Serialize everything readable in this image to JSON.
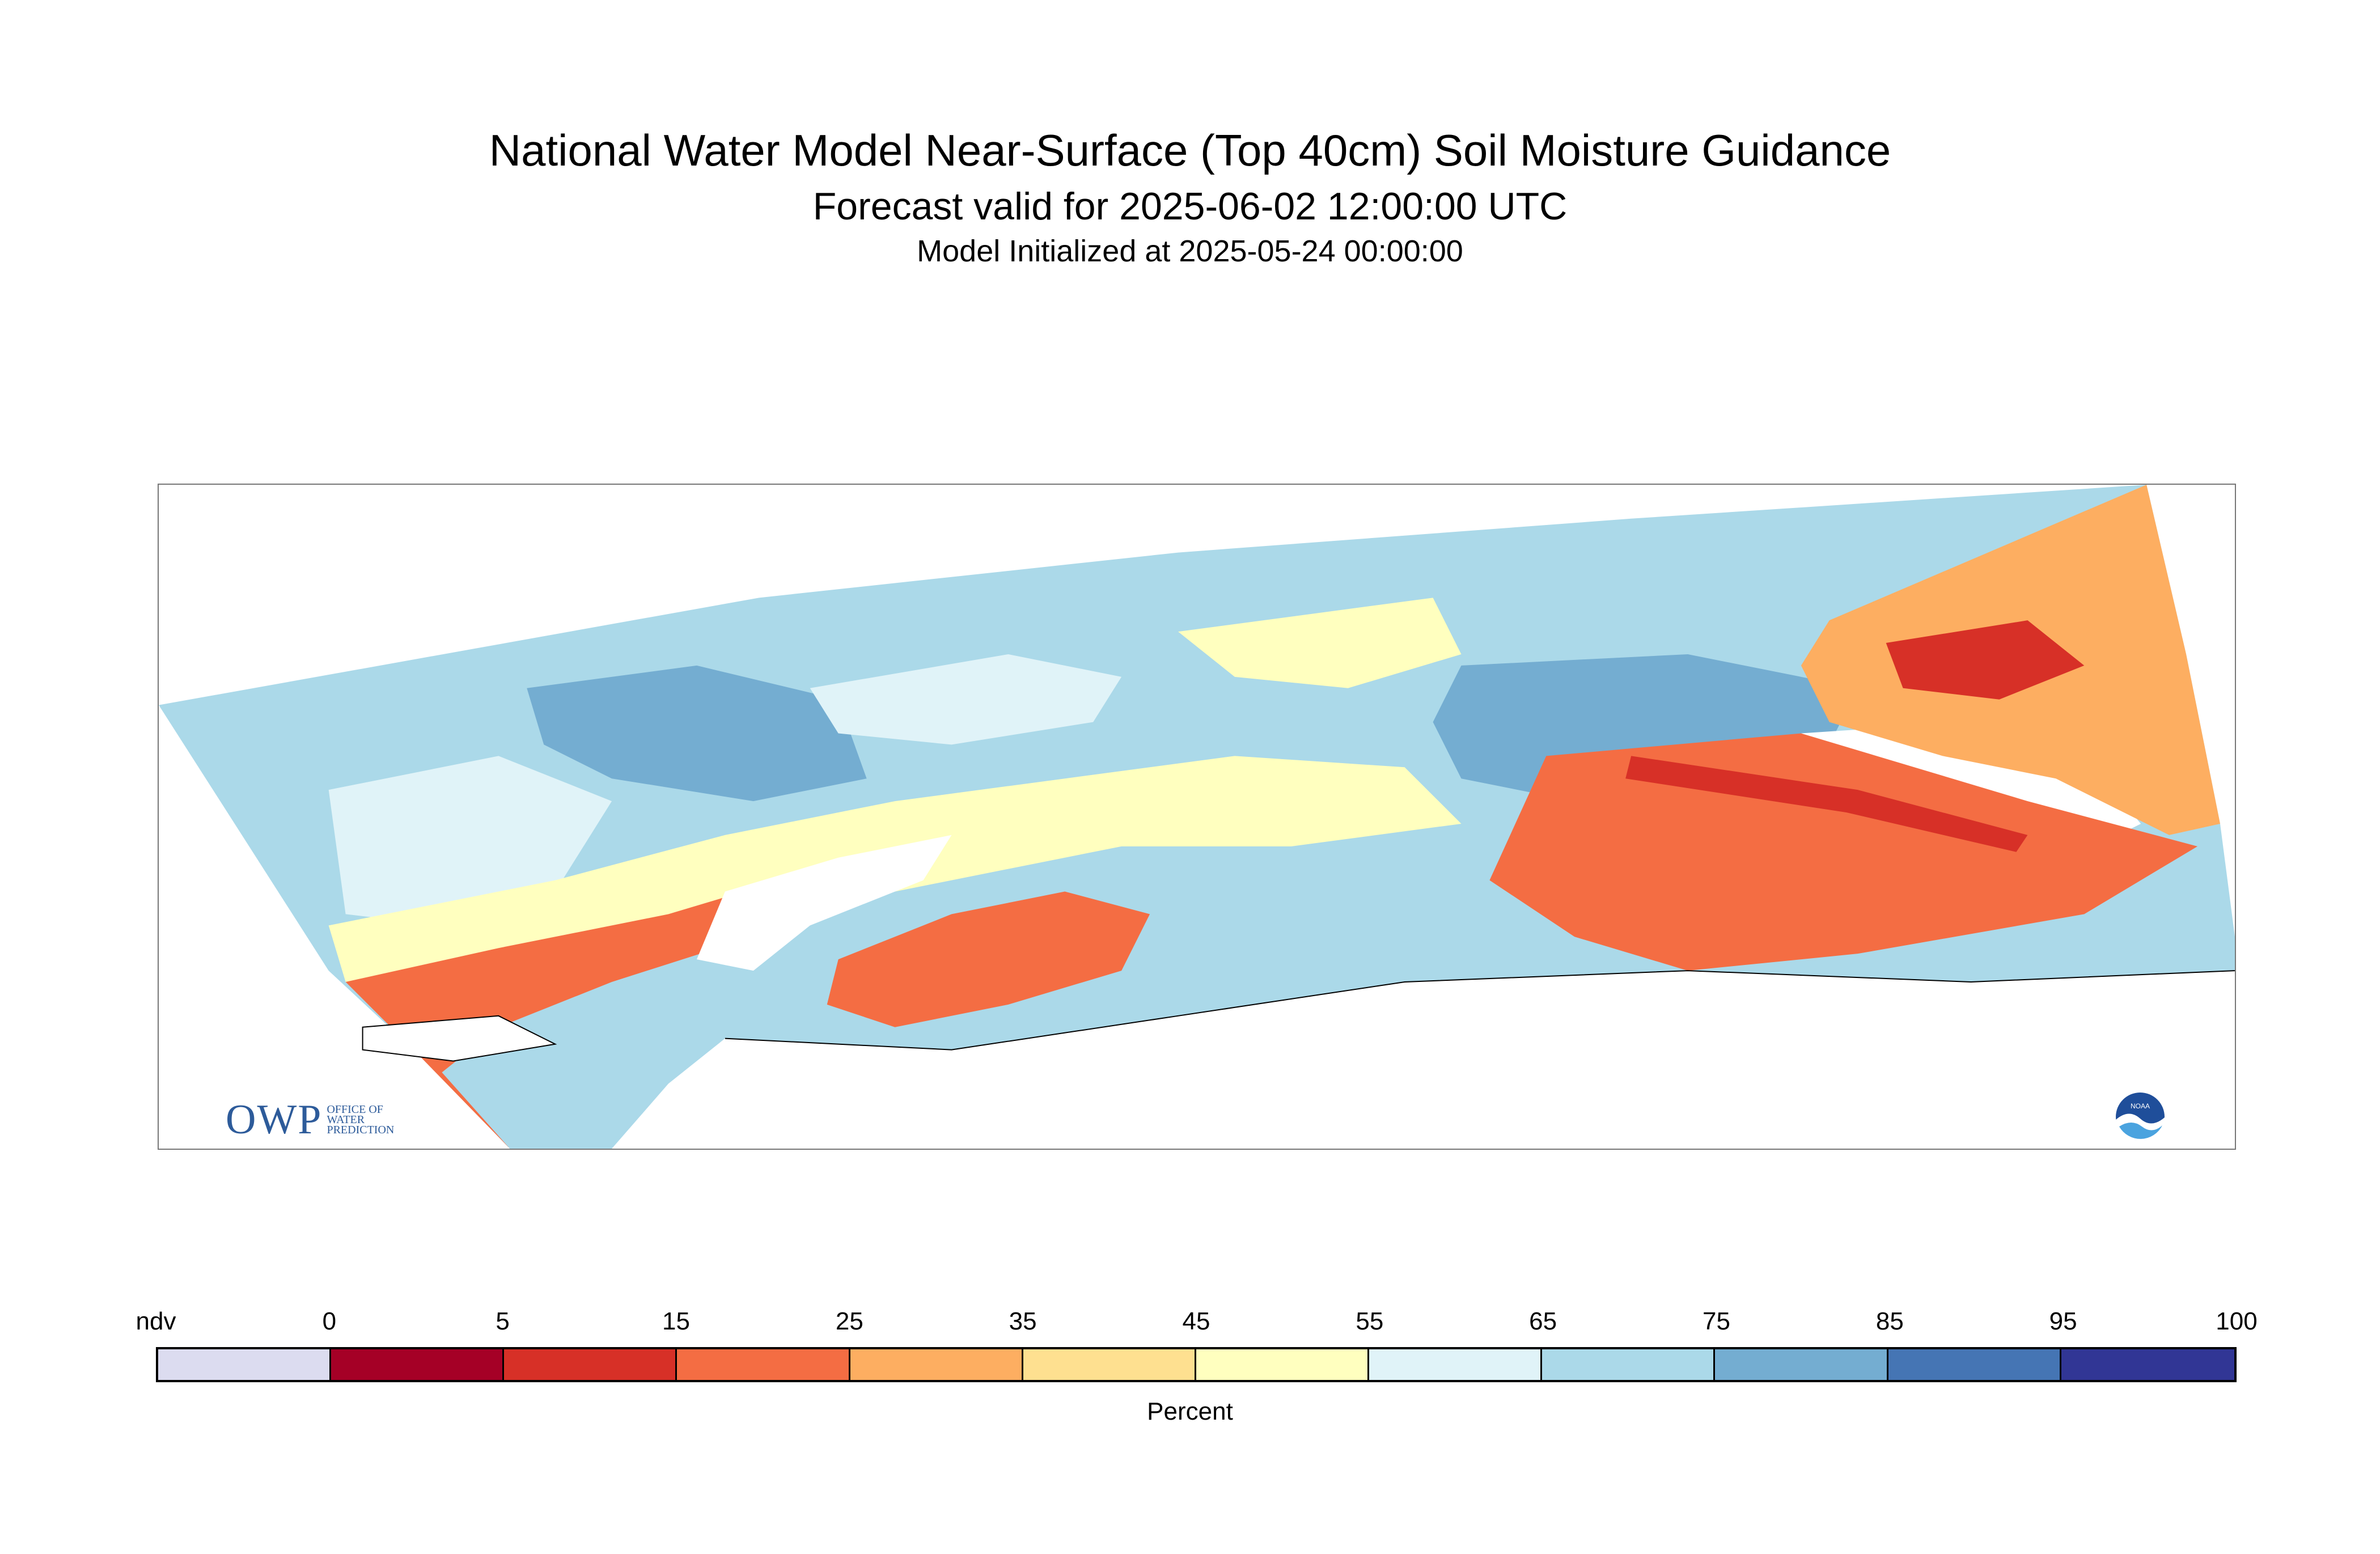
{
  "header": {
    "title": "National Water Model Near-Surface (Top 40cm) Soil Moisture Guidance",
    "subtitle": "Forecast valid for 2025-06-02 12:00:00 UTC",
    "init": "Model Initialized at 2025-05-24 00:00:00"
  },
  "logos": {
    "owp_mark": "OWP",
    "owp_text_1": "OFFICE OF",
    "owp_text_2": "WATER",
    "owp_text_3": "PREDICTION",
    "noaa_text": "NOAA"
  },
  "colorbar": {
    "label": "Percent",
    "ticks": [
      "ndv",
      "0",
      "5",
      "15",
      "25",
      "35",
      "45",
      "55",
      "65",
      "75",
      "85",
      "95",
      "100"
    ],
    "colors": [
      "#dcdcf0",
      "#a50026",
      "#d73027",
      "#f46d43",
      "#fdae61",
      "#fee090",
      "#ffffbf",
      "#e0f3f8",
      "#abd9e9",
      "#74add1",
      "#4575b4",
      "#313695"
    ]
  },
  "map": {
    "water_color": "#ffffff",
    "dominant_colors": {
      "north": "#abd9e9",
      "wet_patches": "#74add1",
      "moderate": "#ffffbf",
      "dry_south": "#f46d43",
      "dry_east": "#fdae61",
      "very_dry": "#d73027",
      "light": "#e0f3f8"
    }
  }
}
